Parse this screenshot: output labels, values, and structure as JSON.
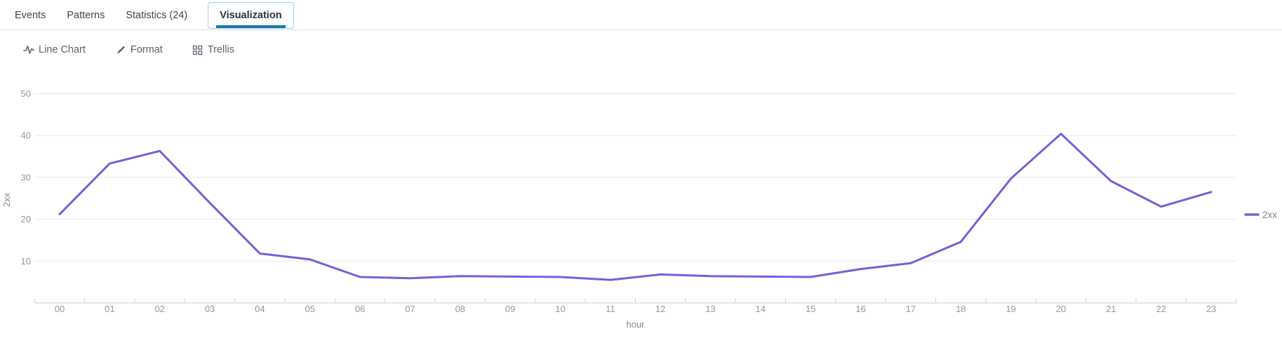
{
  "tabs": [
    {
      "label": "Events",
      "active": false
    },
    {
      "label": "Patterns",
      "active": false
    },
    {
      "label": "Statistics (24)",
      "active": false
    },
    {
      "label": "Visualization",
      "active": true
    }
  ],
  "toolbar": {
    "chart_type_label": "Line Chart",
    "format_label": "Format",
    "trellis_label": "Trellis",
    "icons": [
      "line-chart-icon",
      "pencil-icon",
      "grid-icon"
    ]
  },
  "chart_data": {
    "type": "line",
    "title": "",
    "xlabel": "hour",
    "ylabel": "2xx",
    "ylim": [
      0,
      50
    ],
    "yticks": [
      10,
      20,
      30,
      40,
      50
    ],
    "grid": true,
    "legend_position": "right",
    "categories": [
      "00",
      "01",
      "02",
      "03",
      "04",
      "05",
      "06",
      "07",
      "08",
      "09",
      "10",
      "11",
      "12",
      "13",
      "14",
      "15",
      "16",
      "17",
      "18",
      "19",
      "20",
      "21",
      "22",
      "23"
    ],
    "series": [
      {
        "name": "2xx",
        "color": "#7b5cd6",
        "values": [
          21.2,
          33.3,
          36.3,
          23.9,
          11.8,
          10.4,
          6.2,
          5.9,
          6.4,
          6.3,
          6.2,
          5.5,
          6.8,
          6.4,
          6.3,
          6.2,
          8.1,
          9.5,
          14.6,
          29.7,
          40.4,
          29.1,
          23.0,
          26.5
        ]
      }
    ]
  },
  "colors": {
    "series": "#7b5cd6",
    "tab_active_underline": "#1379a8",
    "tab_active_border": "#9fd3ee",
    "gridline": "#e8e8e8",
    "axis_line": "#cccccc",
    "tick_text": "#8e98a2",
    "axis_title_text": "#808b95",
    "legend_text": "#78838d",
    "toolbar_icon": "#57636e"
  }
}
